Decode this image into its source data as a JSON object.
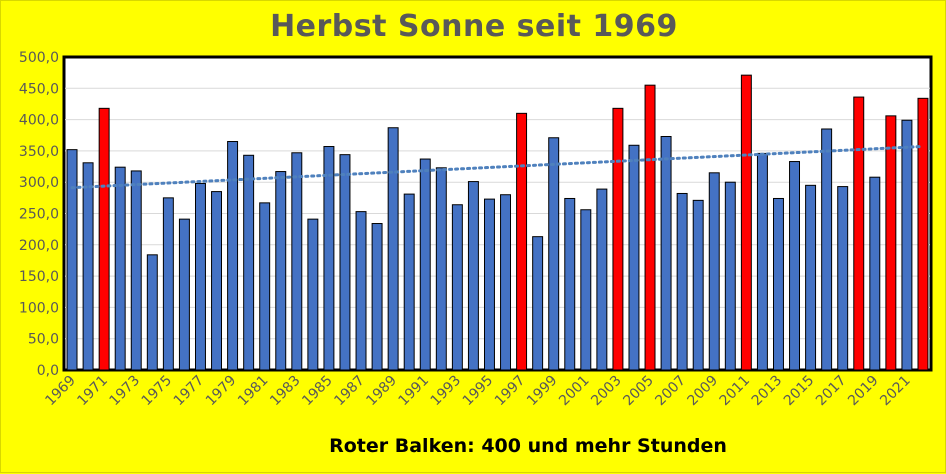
{
  "chart_data": {
    "type": "bar",
    "title": "Herbst Sonne seit 1969",
    "annotation": "Roter Balken: 400 und mehr Stunden",
    "xlabel": "",
    "ylabel": "",
    "ylim": [
      0,
      500
    ],
    "y_ticks": [
      "0,0",
      "50,0",
      "100,0",
      "150,0",
      "200,0",
      "250,0",
      "300,0",
      "350,0",
      "400,0",
      "450,0",
      "500,0"
    ],
    "x_tick_labels": [
      "1969",
      "1971",
      "1973",
      "1975",
      "1977",
      "1979",
      "1981",
      "1983",
      "1985",
      "1987",
      "1989",
      "1991",
      "1993",
      "1995",
      "1997",
      "1999",
      "2001",
      "2003",
      "2005",
      "2007",
      "2009",
      "2011",
      "2013",
      "2015",
      "2017",
      "2019",
      "2021"
    ],
    "categories": [
      "1969",
      "1970",
      "1971",
      "1972",
      "1973",
      "1974",
      "1975",
      "1976",
      "1977",
      "1978",
      "1979",
      "1980",
      "1981",
      "1982",
      "1983",
      "1984",
      "1985",
      "1986",
      "1987",
      "1988",
      "1989",
      "1990",
      "1991",
      "1992",
      "1993",
      "1994",
      "1995",
      "1996",
      "1997",
      "1998",
      "1999",
      "2000",
      "2001",
      "2002",
      "2003",
      "2004",
      "2005",
      "2006",
      "2007",
      "2008",
      "2009",
      "2010",
      "2011",
      "2012",
      "2013",
      "2014",
      "2015",
      "2016",
      "2017",
      "2018",
      "2019",
      "2020",
      "2021",
      "2022"
    ],
    "values": [
      352,
      331,
      418,
      324,
      318,
      184,
      275,
      241,
      298,
      285,
      365,
      343,
      267,
      317,
      347,
      241,
      357,
      344,
      253,
      234,
      387,
      281,
      337,
      323,
      264,
      301,
      273,
      280,
      410,
      213,
      371,
      274,
      256,
      289,
      418,
      359,
      455,
      373,
      282,
      271,
      315,
      300,
      471,
      346,
      274,
      333,
      295,
      385,
      293,
      436,
      308,
      406,
      399,
      434
    ],
    "highlight_threshold": 400,
    "colors": {
      "normal": "#4472c4",
      "highlight": "#ff0000",
      "trendline": "#4f81bd",
      "background": "#ffff00"
    },
    "trendline": {
      "type": "linear",
      "style": "dotted"
    },
    "grid": true
  }
}
